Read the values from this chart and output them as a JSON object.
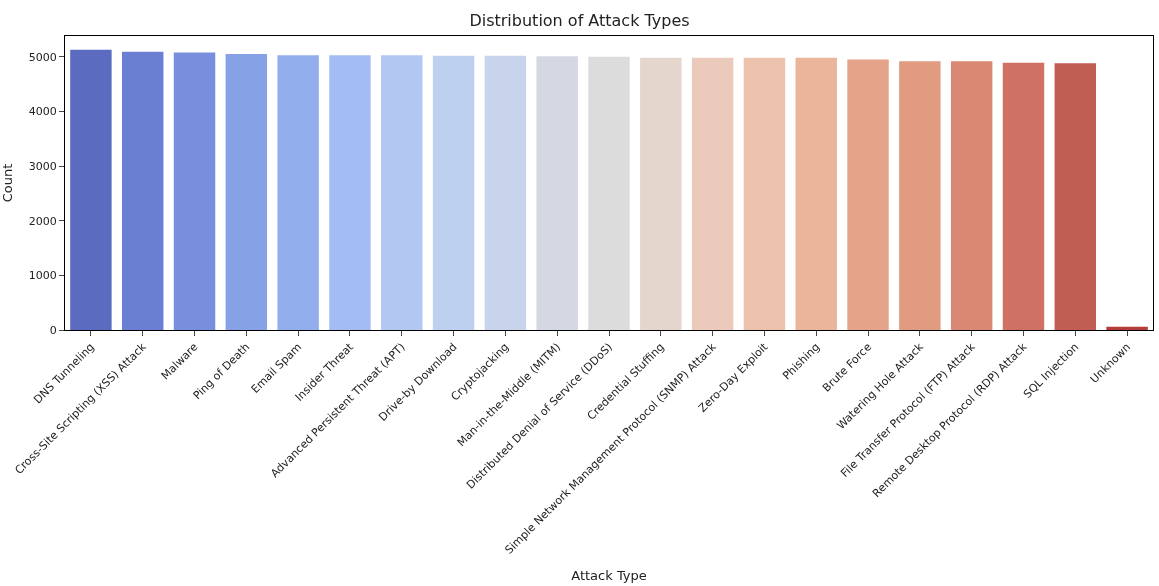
{
  "chart_data": {
    "type": "bar",
    "title": "Distribution of Attack Types",
    "xlabel": "Attack Type",
    "ylabel": "Count",
    "categories": [
      "DNS Tunneling",
      "Cross-Site Scripting (XSS) Attack",
      "Malware",
      "Ping of Death",
      "Email Spam",
      "Insider Threat",
      "Advanced Persistent Threat (APT)",
      "Drive-by Download",
      "Cryptojacking",
      "Man-in-the-Middle (MITM)",
      "Distributed Denial of Service (DDoS)",
      "Credential Stuffing",
      "Simple Network Management Protocol (SNMP) Attack",
      "Zero-Day Exploit",
      "Phishing",
      "Brute Force",
      "Watering Hole Attack",
      "File Transfer Protocol (FTP) Attack",
      "Remote Desktop Protocol (RDP) Attack",
      "SQL Injection",
      "Unknown"
    ],
    "values": [
      5130,
      5090,
      5080,
      5050,
      5030,
      5030,
      5030,
      5020,
      5020,
      5010,
      5000,
      4980,
      4980,
      4980,
      4980,
      4950,
      4920,
      4920,
      4890,
      4880,
      60
    ],
    "colors": [
      "#5a6bc0",
      "#6a7fd2",
      "#778fdc",
      "#86a1e6",
      "#93aeed",
      "#a3bdf4",
      "#b2c7f2",
      "#bed0f0",
      "#c8d4eb",
      "#d4d8e3",
      "#dcdcdc",
      "#e5d6cd",
      "#eccabb",
      "#edc2ad",
      "#ebb59c",
      "#e5a489",
      "#e09b80",
      "#d98873",
      "#cf7263",
      "#c05e53",
      "#b43c3a"
    ],
    "ylim": [
      0,
      5380
    ],
    "yticks": [
      0,
      1000,
      2000,
      3000,
      4000,
      5000
    ]
  }
}
